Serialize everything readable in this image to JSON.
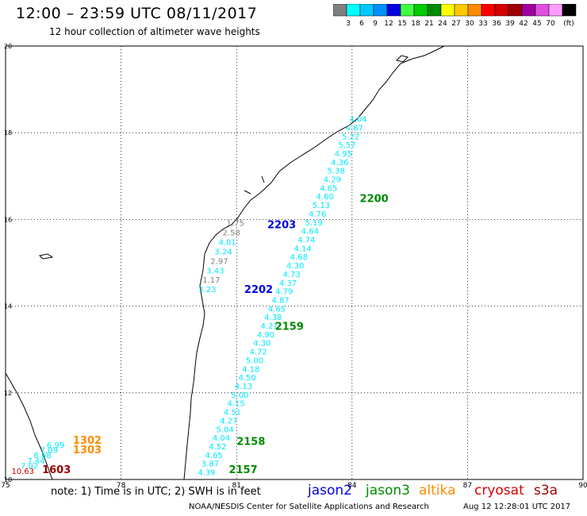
{
  "header": {
    "title": "12:00  –  23:59  UTC  08/11/2017",
    "subtitle": "12 hour collection of altimeter wave heights"
  },
  "color_scale": {
    "unit": "(ft)",
    "bins": [
      {
        "color": "#7f7f7f",
        "label": ""
      },
      {
        "color": "#00ffff",
        "label": "3"
      },
      {
        "color": "#00c8ff",
        "label": "6"
      },
      {
        "color": "#0090ff",
        "label": "9"
      },
      {
        "color": "#0000e0",
        "label": "12"
      },
      {
        "color": "#40ff40",
        "label": "15"
      },
      {
        "color": "#00cc00",
        "label": "18"
      },
      {
        "color": "#008a00",
        "label": "21"
      },
      {
        "color": "#ffff00",
        "label": "24"
      },
      {
        "color": "#ffc800",
        "label": "27"
      },
      {
        "color": "#ff8c00",
        "label": "30"
      },
      {
        "color": "#ff0000",
        "label": "33"
      },
      {
        "color": "#d40000",
        "label": "36"
      },
      {
        "color": "#a00000",
        "label": "39"
      },
      {
        "color": "#a000a0",
        "label": "42"
      },
      {
        "color": "#e050e0",
        "label": "45"
      },
      {
        "color": "#ff9cff",
        "label": "70"
      },
      {
        "color": "#000000",
        "label": ""
      }
    ]
  },
  "axes": {
    "lon_ticks": [
      75,
      78,
      81,
      84,
      87,
      90
    ],
    "lat_ticks": [
      10,
      12,
      14,
      16,
      18,
      20
    ],
    "lon_range": [
      75,
      90
    ],
    "lat_range": [
      10,
      20
    ]
  },
  "tracks": [
    {
      "color": "#00e8ff",
      "start": [
        84.16,
        18.25
      ],
      "end": [
        80.22,
        10.1
      ],
      "values": [
        "4.04",
        "4.87",
        "5.22",
        "5.57",
        "4.95",
        "4.36",
        "5.38",
        "4.29",
        "4.65",
        "4.60",
        "5.13",
        "4.76",
        "5.19",
        "4.64",
        "4.74",
        "4.14",
        "4.68",
        "4.30",
        "4.73",
        "4.37",
        "4.79",
        "4.87",
        "4.65",
        "4.38",
        "4.21",
        "4.90",
        "4.30",
        "4.72",
        "5.00",
        "4.18",
        "4.50",
        "4.13",
        "5.00",
        "4.15",
        "4.51",
        "4.27",
        "5.04",
        "4.04",
        "4.52",
        "4.65",
        "3.87",
        "4.39"
      ]
    },
    {
      "color": "mixed",
      "start": [
        80.97,
        15.85
      ],
      "end": [
        80.24,
        14.32
      ],
      "values": [
        "1.75",
        "2.58",
        "4.01",
        "3.24",
        "2.97",
        "3.43",
        "1.17",
        "3.23"
      ],
      "colors": [
        "#7f7f7f",
        "#7f7f7f",
        "#00e8ff",
        "#00e8ff",
        "#7f7f7f",
        "#00e8ff",
        "#7f7f7f",
        "#00e8ff"
      ]
    },
    {
      "color": "#00e8ff",
      "start": [
        76.3,
        10.73
      ],
      "end": [
        75.45,
        10.13
      ],
      "values": [
        "6.99",
        "7.09",
        "6.68",
        "7.44",
        "7.02",
        "10.63"
      ],
      "colors": [
        "#00e8ff",
        "#00e8ff",
        "#00e8ff",
        "#00e8ff",
        "#00e8ff",
        "#d40000"
      ]
    }
  ],
  "time_labels": [
    {
      "text": "2200",
      "color": "#008a00",
      "lon": 84.2,
      "lat": 16.4
    },
    {
      "text": "2203",
      "color": "#0000e0",
      "lon": 81.8,
      "lat": 15.8
    },
    {
      "text": "2202",
      "color": "#0000e0",
      "lon": 81.2,
      "lat": 14.3
    },
    {
      "text": "2159",
      "color": "#008a00",
      "lon": 82.0,
      "lat": 13.45
    },
    {
      "text": "2158",
      "color": "#008a00",
      "lon": 81.0,
      "lat": 10.8
    },
    {
      "text": "2157",
      "color": "#008a00",
      "lon": 80.8,
      "lat": 10.15
    },
    {
      "text": "1302",
      "color": "#ff8c00",
      "lon": 76.75,
      "lat": 10.82
    },
    {
      "text": "1303",
      "color": "#ff8c00",
      "lon": 76.75,
      "lat": 10.6
    },
    {
      "text": "1603",
      "color": "#a00000",
      "lon": 75.95,
      "lat": 10.15
    }
  ],
  "note": "note: 1) Time is in UTC; 2) SWH is in feet",
  "legend": [
    {
      "label": "jason2",
      "color": "#0000e0"
    },
    {
      "label": "jason3",
      "color": "#008a00"
    },
    {
      "label": "altika",
      "color": "#ff8c00"
    },
    {
      "label": "cryosat",
      "color": "#d40000"
    },
    {
      "label": "s3a",
      "color": "#a00000"
    }
  ],
  "footer": {
    "credit": "NOAA/NESDIS Center for Satellite Applications and Research",
    "timestamp": "Aug 12 12:28:01 UTC 2017"
  }
}
